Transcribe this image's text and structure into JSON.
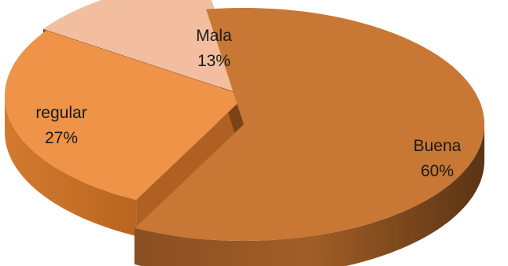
{
  "chart_data": {
    "type": "pie",
    "title": "",
    "style": "3d-exploded",
    "slices": [
      {
        "name": "Buena",
        "value": 60,
        "value_label": "60%",
        "color": "#C87734"
      },
      {
        "name": "regular",
        "value": 27,
        "value_label": "27%",
        "color": "#EE9348"
      },
      {
        "name": "Mala",
        "value": 13,
        "value_label": "13%",
        "color": "#F3BE9F"
      }
    ]
  }
}
